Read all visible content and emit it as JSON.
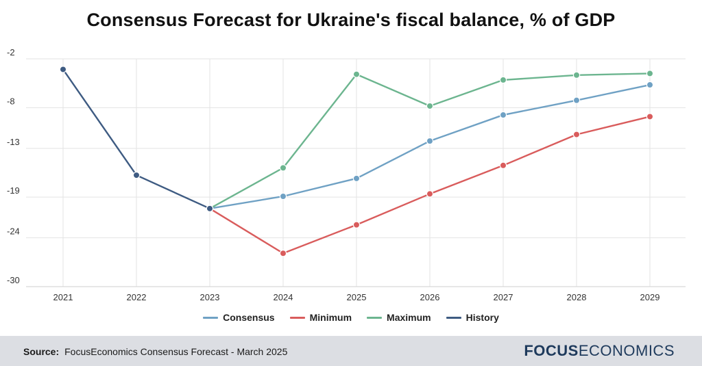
{
  "title": "Consensus Forecast for Ukraine's fiscal balance, % of GDP",
  "footer": {
    "source_label": "Source:",
    "source_text": "FocusEconomics Consensus Forecast - March 2025",
    "logo_bold": "FOCUS",
    "logo_light": "ECONOMICS"
  },
  "chart_data": {
    "type": "line",
    "title": "Consensus Forecast for Ukraine's fiscal balance, % of GDP",
    "xlabel": "",
    "ylabel": "",
    "categories": [
      "2021",
      "2022",
      "2023",
      "2024",
      "2025",
      "2026",
      "2027",
      "2028",
      "2029"
    ],
    "ylim": [
      -30,
      -2
    ],
    "yticks": [
      -30,
      -24,
      -19,
      -13,
      -8,
      -2
    ],
    "grid": true,
    "legend_position": "bottom",
    "series": [
      {
        "name": "Consensus",
        "color": "#6fa1c4",
        "values": [
          null,
          null,
          -20.4,
          -18.9,
          -16.7,
          -12.1,
          -8.9,
          -7.1,
          -5.2
        ]
      },
      {
        "name": "Minimum",
        "color": "#d95c5c",
        "values": [
          null,
          null,
          -20.4,
          -25.9,
          -22.4,
          -18.6,
          -15.1,
          -11.3,
          -9.1
        ]
      },
      {
        "name": "Maximum",
        "color": "#6cb58f",
        "values": [
          null,
          null,
          -20.4,
          -15.4,
          -3.9,
          -7.8,
          -4.6,
          -4.0,
          -3.8
        ]
      },
      {
        "name": "History",
        "color": "#3e5b82",
        "values": [
          -3.3,
          -16.3,
          -20.4,
          null,
          null,
          null,
          null,
          null,
          null
        ]
      }
    ]
  }
}
